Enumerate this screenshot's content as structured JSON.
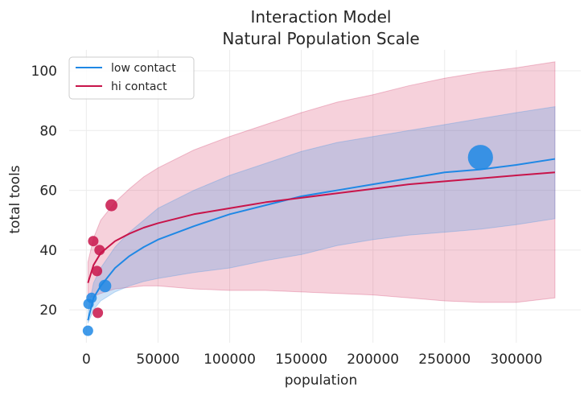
{
  "chart_data": {
    "type": "line",
    "title": "Interaction Model",
    "subtitle": "Natural Population Scale",
    "xlabel": "population",
    "ylabel": "total tools",
    "xlim": [
      -12000,
      345000
    ],
    "ylim": [
      9,
      107
    ],
    "x_ticks": [
      0,
      50000,
      100000,
      150000,
      200000,
      250000,
      300000
    ],
    "x_tick_labels": [
      "0",
      "50000",
      "100000",
      "150000",
      "200000",
      "250000",
      "300000"
    ],
    "y_ticks": [
      20,
      40,
      60,
      80,
      100
    ],
    "y_tick_labels": [
      "20",
      "40",
      "60",
      "80",
      "100"
    ],
    "grid": true,
    "legend_position": "top-left",
    "colors": {
      "low_contact": "#1f88e5",
      "hi_contact": "#c8144a",
      "low_band": "rgba(80,150,225,0.28)",
      "hi_band": "rgba(220,70,110,0.25)",
      "grid": "#ebebeb"
    },
    "series": [
      {
        "name": "low contact",
        "key": "low",
        "x": [
          1100,
          5000,
          10000,
          20000,
          30000,
          40000,
          50000,
          75000,
          100000,
          125000,
          150000,
          175000,
          200000,
          225000,
          250000,
          275000,
          300000,
          327000
        ],
        "mean": [
          16.5,
          24,
          28,
          34,
          38,
          41,
          43.5,
          48,
          52,
          55,
          58,
          60,
          62,
          64,
          66,
          67,
          68.5,
          70.5
        ],
        "lower": [
          15.5,
          20,
          23,
          26,
          28,
          29.5,
          30.5,
          32.5,
          34,
          36.5,
          38.5,
          41.5,
          43.5,
          45,
          46,
          47,
          48.5,
          50.5
        ],
        "upper": [
          19.5,
          29,
          34,
          41,
          46,
          50,
          54,
          60,
          65,
          69,
          73,
          76,
          78,
          80,
          82,
          84,
          86,
          88
        ]
      },
      {
        "name": "hi contact",
        "key": "hi",
        "x": [
          1100,
          5000,
          10000,
          20000,
          30000,
          40000,
          50000,
          75000,
          100000,
          125000,
          150000,
          175000,
          200000,
          225000,
          250000,
          275000,
          300000,
          327000
        ],
        "mean": [
          29,
          35,
          39,
          43,
          45.5,
          47.5,
          49,
          52,
          54,
          56,
          57.5,
          59,
          60.5,
          62,
          63,
          64,
          65,
          66
        ],
        "lower": [
          24,
          24.5,
          25.5,
          27,
          27.5,
          28,
          28,
          27,
          26.5,
          26.5,
          26,
          25.5,
          25,
          24,
          23,
          22.5,
          22.5,
          24
        ],
        "upper": [
          36,
          44,
          50,
          56,
          60.5,
          64.5,
          67.5,
          73.5,
          78,
          82,
          86,
          89.5,
          92,
          95,
          97.5,
          99.5,
          101,
          103
        ]
      }
    ],
    "observations": [
      {
        "x": 1100,
        "y": 13,
        "group": "low",
        "size": 1
      },
      {
        "x": 1500,
        "y": 22,
        "group": "low",
        "size": 1
      },
      {
        "x": 3600,
        "y": 24,
        "group": "low",
        "size": 1
      },
      {
        "x": 4800,
        "y": 43,
        "group": "hi",
        "size": 1
      },
      {
        "x": 7400,
        "y": 33,
        "group": "hi",
        "size": 1
      },
      {
        "x": 8000,
        "y": 19,
        "group": "hi",
        "size": 1
      },
      {
        "x": 9200,
        "y": 40,
        "group": "hi",
        "size": 1
      },
      {
        "x": 13000,
        "y": 28,
        "group": "low",
        "size": 1.2
      },
      {
        "x": 17500,
        "y": 55,
        "group": "hi",
        "size": 1.15
      },
      {
        "x": 275000,
        "y": 71,
        "group": "low",
        "size": 2.4
      }
    ]
  }
}
